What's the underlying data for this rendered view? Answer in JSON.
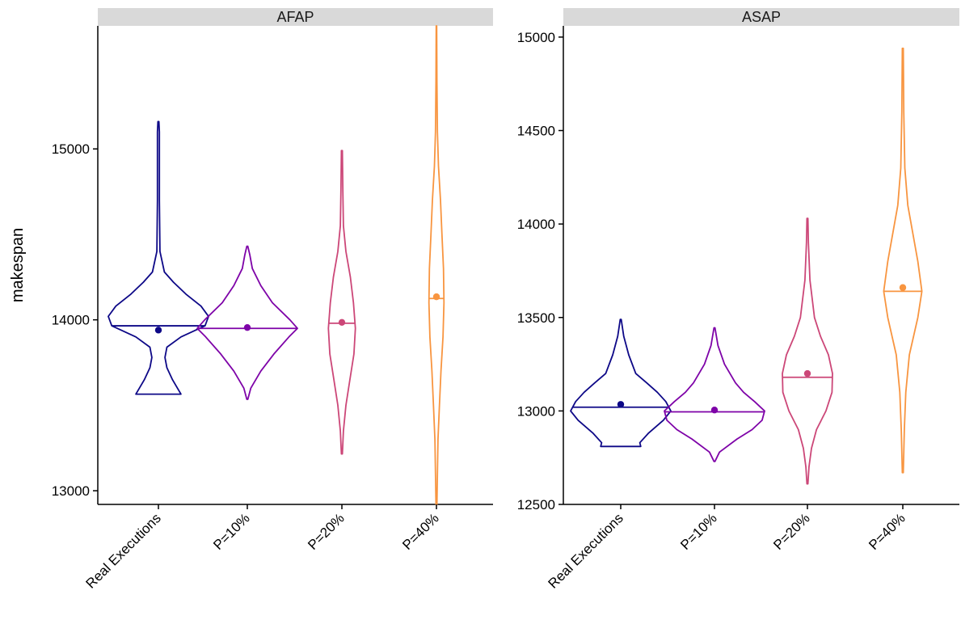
{
  "chart_data": {
    "type": "violin",
    "ylabel": "makespan",
    "categories": [
      "Real Executions",
      "P=10%",
      "P=20%",
      "P=40%"
    ],
    "series_colors": [
      "#0d0887",
      "#7e03a8",
      "#cc4778",
      "#f89540"
    ],
    "panels": [
      {
        "title": "AFAP",
        "ylim": [
          12920,
          15720
        ],
        "yticks": [
          13000,
          14000,
          15000
        ],
        "violins": [
          {
            "category": "Real Executions",
            "median": 13965,
            "mean": 13940,
            "min": 13565,
            "max": 15160,
            "profile": [
              [
                13565,
                0.45
              ],
              [
                13590,
                0.4
              ],
              [
                13650,
                0.28
              ],
              [
                13720,
                0.17
              ],
              [
                13780,
                0.13
              ],
              [
                13840,
                0.17
              ],
              [
                13900,
                0.45
              ],
              [
                13965,
                0.93
              ],
              [
                14020,
                1.0
              ],
              [
                14080,
                0.85
              ],
              [
                14150,
                0.55
              ],
              [
                14220,
                0.3
              ],
              [
                14280,
                0.12
              ],
              [
                14400,
                0.03
              ],
              [
                14700,
                0.02
              ],
              [
                15100,
                0.02
              ],
              [
                15160,
                0.01
              ]
            ]
          },
          {
            "category": "P=10%",
            "median": 13950,
            "mean": 13955,
            "min": 13535,
            "max": 14430,
            "profile": [
              [
                13535,
                0.01
              ],
              [
                13600,
                0.07
              ],
              [
                13700,
                0.27
              ],
              [
                13800,
                0.53
              ],
              [
                13900,
                0.83
              ],
              [
                13950,
                1.0
              ],
              [
                14000,
                0.85
              ],
              [
                14100,
                0.5
              ],
              [
                14200,
                0.27
              ],
              [
                14300,
                0.1
              ],
              [
                14380,
                0.05
              ],
              [
                14430,
                0.01
              ]
            ]
          },
          {
            "category": "P=20%",
            "median": 13980,
            "mean": 13985,
            "min": 13215,
            "max": 14990,
            "profile": [
              [
                13215,
                0.01
              ],
              [
                13350,
                0.03
              ],
              [
                13500,
                0.08
              ],
              [
                13650,
                0.16
              ],
              [
                13800,
                0.24
              ],
              [
                13950,
                0.27
              ],
              [
                14100,
                0.23
              ],
              [
                14250,
                0.17
              ],
              [
                14400,
                0.08
              ],
              [
                14550,
                0.03
              ],
              [
                14750,
                0.02
              ],
              [
                14990,
                0.01
              ]
            ]
          },
          {
            "category": "P=40%",
            "median": 14125,
            "mean": 14135,
            "min": 12920,
            "max": 15720,
            "profile": [
              [
                12920,
                0.01
              ],
              [
                13100,
                0.02
              ],
              [
                13300,
                0.03
              ],
              [
                13500,
                0.06
              ],
              [
                13700,
                0.09
              ],
              [
                13900,
                0.13
              ],
              [
                14100,
                0.15
              ],
              [
                14300,
                0.14
              ],
              [
                14500,
                0.11
              ],
              [
                14700,
                0.08
              ],
              [
                14900,
                0.04
              ],
              [
                15100,
                0.02
              ],
              [
                15400,
                0.01
              ],
              [
                15720,
                0.005
              ]
            ]
          }
        ]
      },
      {
        "title": "ASAP",
        "ylim": [
          12500,
          15060
        ],
        "yticks": [
          12500,
          13000,
          13500,
          14000,
          14500,
          15000
        ],
        "violins": [
          {
            "category": "Real Executions",
            "median": 13020,
            "mean": 13035,
            "min": 12810,
            "max": 13490,
            "profile": [
              [
                12810,
                0.4
              ],
              [
                12830,
                0.38
              ],
              [
                12880,
                0.55
              ],
              [
                12950,
                0.85
              ],
              [
                13000,
                1.0
              ],
              [
                13050,
                0.9
              ],
              [
                13100,
                0.73
              ],
              [
                13150,
                0.52
              ],
              [
                13200,
                0.3
              ],
              [
                13300,
                0.16
              ],
              [
                13400,
                0.06
              ],
              [
                13490,
                0.01
              ]
            ]
          },
          {
            "category": "P=10%",
            "median": 12995,
            "mean": 13005,
            "min": 12730,
            "max": 13445,
            "profile": [
              [
                12730,
                0.01
              ],
              [
                12780,
                0.1
              ],
              [
                12850,
                0.45
              ],
              [
                12900,
                0.75
              ],
              [
                12950,
                0.95
              ],
              [
                13000,
                1.0
              ],
              [
                13050,
                0.8
              ],
              [
                13100,
                0.58
              ],
              [
                13150,
                0.42
              ],
              [
                13250,
                0.2
              ],
              [
                13350,
                0.07
              ],
              [
                13445,
                0.01
              ]
            ]
          },
          {
            "category": "P=20%",
            "median": 13180,
            "mean": 13200,
            "min": 12610,
            "max": 14030,
            "profile": [
              [
                12610,
                0.01
              ],
              [
                12700,
                0.03
              ],
              [
                12800,
                0.08
              ],
              [
                12900,
                0.18
              ],
              [
                13000,
                0.37
              ],
              [
                13100,
                0.49
              ],
              [
                13200,
                0.5
              ],
              [
                13300,
                0.42
              ],
              [
                13400,
                0.26
              ],
              [
                13500,
                0.14
              ],
              [
                13700,
                0.05
              ],
              [
                13900,
                0.02
              ],
              [
                14030,
                0.01
              ]
            ]
          },
          {
            "category": "P=40%",
            "median": 13640,
            "mean": 13660,
            "min": 12670,
            "max": 14940,
            "profile": [
              [
                12670,
                0.01
              ],
              [
                12900,
                0.03
              ],
              [
                13100,
                0.06
              ],
              [
                13300,
                0.13
              ],
              [
                13500,
                0.3
              ],
              [
                13640,
                0.38
              ],
              [
                13800,
                0.3
              ],
              [
                13950,
                0.2
              ],
              [
                14100,
                0.1
              ],
              [
                14300,
                0.04
              ],
              [
                14600,
                0.02
              ],
              [
                14940,
                0.01
              ]
            ]
          }
        ]
      }
    ]
  }
}
